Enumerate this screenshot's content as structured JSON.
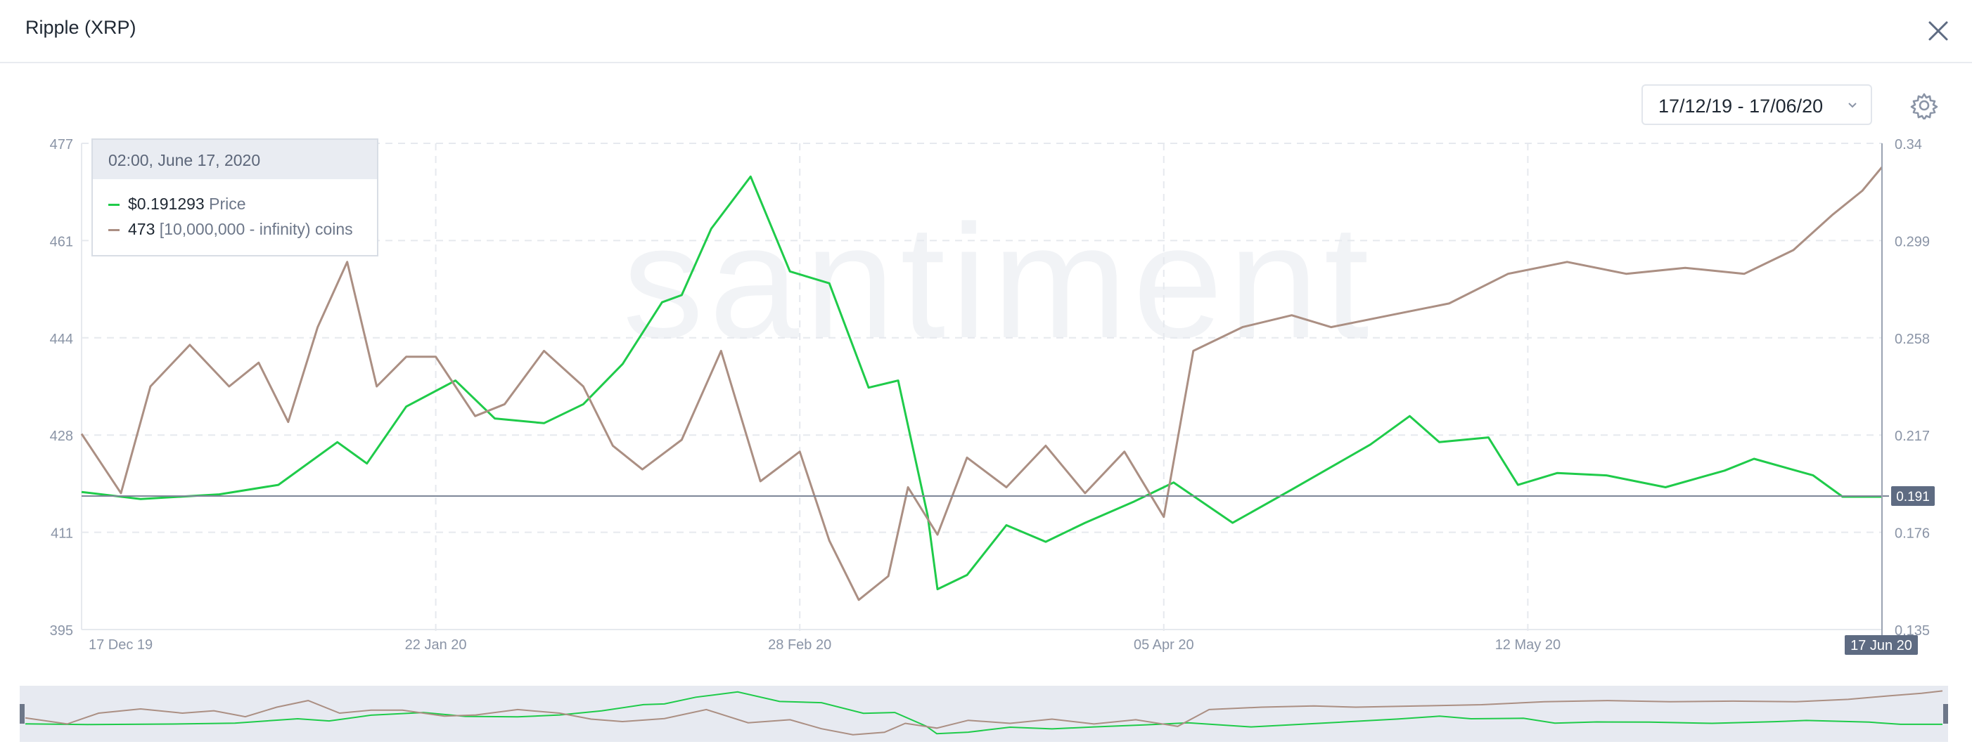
{
  "header": {
    "title": "Ripple (XRP)"
  },
  "controls": {
    "date_range": "17/12/19 - 17/06/20"
  },
  "watermark": "santiment",
  "tooltip": {
    "datetime": "02:00, June 17, 2020",
    "price_value": "$0.191293",
    "price_label": "Price",
    "holders_value": "473",
    "holders_label": "[10,000,000 - infinity) coins"
  },
  "colors": {
    "price": "#1fcb4a",
    "holders": "#ab8f83",
    "axis_text": "#8a94a6",
    "grid": "#e6e9ee",
    "badge": "#5e6b82"
  },
  "chart_data": {
    "type": "line",
    "title": "Ripple (XRP)",
    "x_tick_labels": [
      "17 Dec 19",
      "22 Jan 20",
      "28 Feb 20",
      "05 Apr 20",
      "12 May 20"
    ],
    "x_current_label": "17 Jun 20",
    "left_axis": {
      "ticks": [
        "395",
        "411",
        "428",
        "444",
        "461",
        "477"
      ],
      "range": [
        395,
        477
      ]
    },
    "right_axis": {
      "ticks": [
        "0.135",
        "0.176",
        "0.217",
        "0.258",
        "0.299",
        "0.34"
      ],
      "range": [
        0.135,
        0.34
      ]
    },
    "current_price_label": "0.191",
    "grid": true,
    "series": [
      {
        "name": "Price",
        "axis": "right",
        "x": [
          "2019-12-17",
          "2019-12-23",
          "2019-12-31",
          "2020-01-06",
          "2020-01-12",
          "2020-01-15",
          "2020-01-19",
          "2020-01-24",
          "2020-01-28",
          "2020-02-02",
          "2020-02-06",
          "2020-02-10",
          "2020-02-14",
          "2020-02-16",
          "2020-02-19",
          "2020-02-23",
          "2020-02-27",
          "2020-03-02",
          "2020-03-06",
          "2020-03-09",
          "2020-03-12",
          "2020-03-13",
          "2020-03-16",
          "2020-03-20",
          "2020-03-24",
          "2020-03-28",
          "2020-04-02",
          "2020-04-06",
          "2020-04-12",
          "2020-04-18",
          "2020-04-26",
          "2020-04-30",
          "2020-05-03",
          "2020-05-08",
          "2020-05-11",
          "2020-05-15",
          "2020-05-20",
          "2020-05-26",
          "2020-06-01",
          "2020-06-04",
          "2020-06-10",
          "2020-06-13",
          "2020-06-17"
        ],
        "y": [
          0.193,
          0.19,
          0.192,
          0.196,
          0.214,
          0.205,
          0.229,
          0.24,
          0.224,
          0.222,
          0.23,
          0.247,
          0.273,
          0.276,
          0.304,
          0.326,
          0.286,
          0.281,
          0.237,
          0.24,
          0.183,
          0.152,
          0.158,
          0.179,
          0.172,
          0.18,
          0.189,
          0.197,
          0.18,
          0.194,
          0.213,
          0.225,
          0.214,
          0.216,
          0.196,
          0.201,
          0.2,
          0.195,
          0.202,
          0.207,
          0.2,
          0.191,
          0.191
        ]
      },
      {
        "name": "[10,000,000 - infinity) coins",
        "axis": "left",
        "x": [
          "2019-12-17",
          "2019-12-21",
          "2019-12-24",
          "2019-12-28",
          "2020-01-01",
          "2020-01-04",
          "2020-01-07",
          "2020-01-10",
          "2020-01-13",
          "2020-01-16",
          "2020-01-19",
          "2020-01-22",
          "2020-01-26",
          "2020-01-29",
          "2020-02-02",
          "2020-02-06",
          "2020-02-09",
          "2020-02-12",
          "2020-02-16",
          "2020-02-20",
          "2020-02-24",
          "2020-02-28",
          "2020-03-02",
          "2020-03-05",
          "2020-03-08",
          "2020-03-10",
          "2020-03-13",
          "2020-03-16",
          "2020-03-20",
          "2020-03-24",
          "2020-03-28",
          "2020-04-01",
          "2020-04-05",
          "2020-04-08",
          "2020-04-13",
          "2020-04-18",
          "2020-04-22",
          "2020-04-28",
          "2020-05-04",
          "2020-05-10",
          "2020-05-16",
          "2020-05-22",
          "2020-05-28",
          "2020-06-03",
          "2020-06-08",
          "2020-06-12",
          "2020-06-15",
          "2020-06-17"
        ],
        "y": [
          428,
          418,
          436,
          443,
          436,
          440,
          430,
          446,
          457,
          436,
          441,
          441,
          431,
          433,
          442,
          436,
          426,
          422,
          427,
          442,
          420,
          425,
          410,
          400,
          404,
          419,
          411,
          424,
          419,
          426,
          418,
          425,
          414,
          442,
          446,
          448,
          446,
          448,
          450,
          455,
          457,
          455,
          456,
          455,
          459,
          465,
          469,
          473
        ]
      }
    ]
  }
}
